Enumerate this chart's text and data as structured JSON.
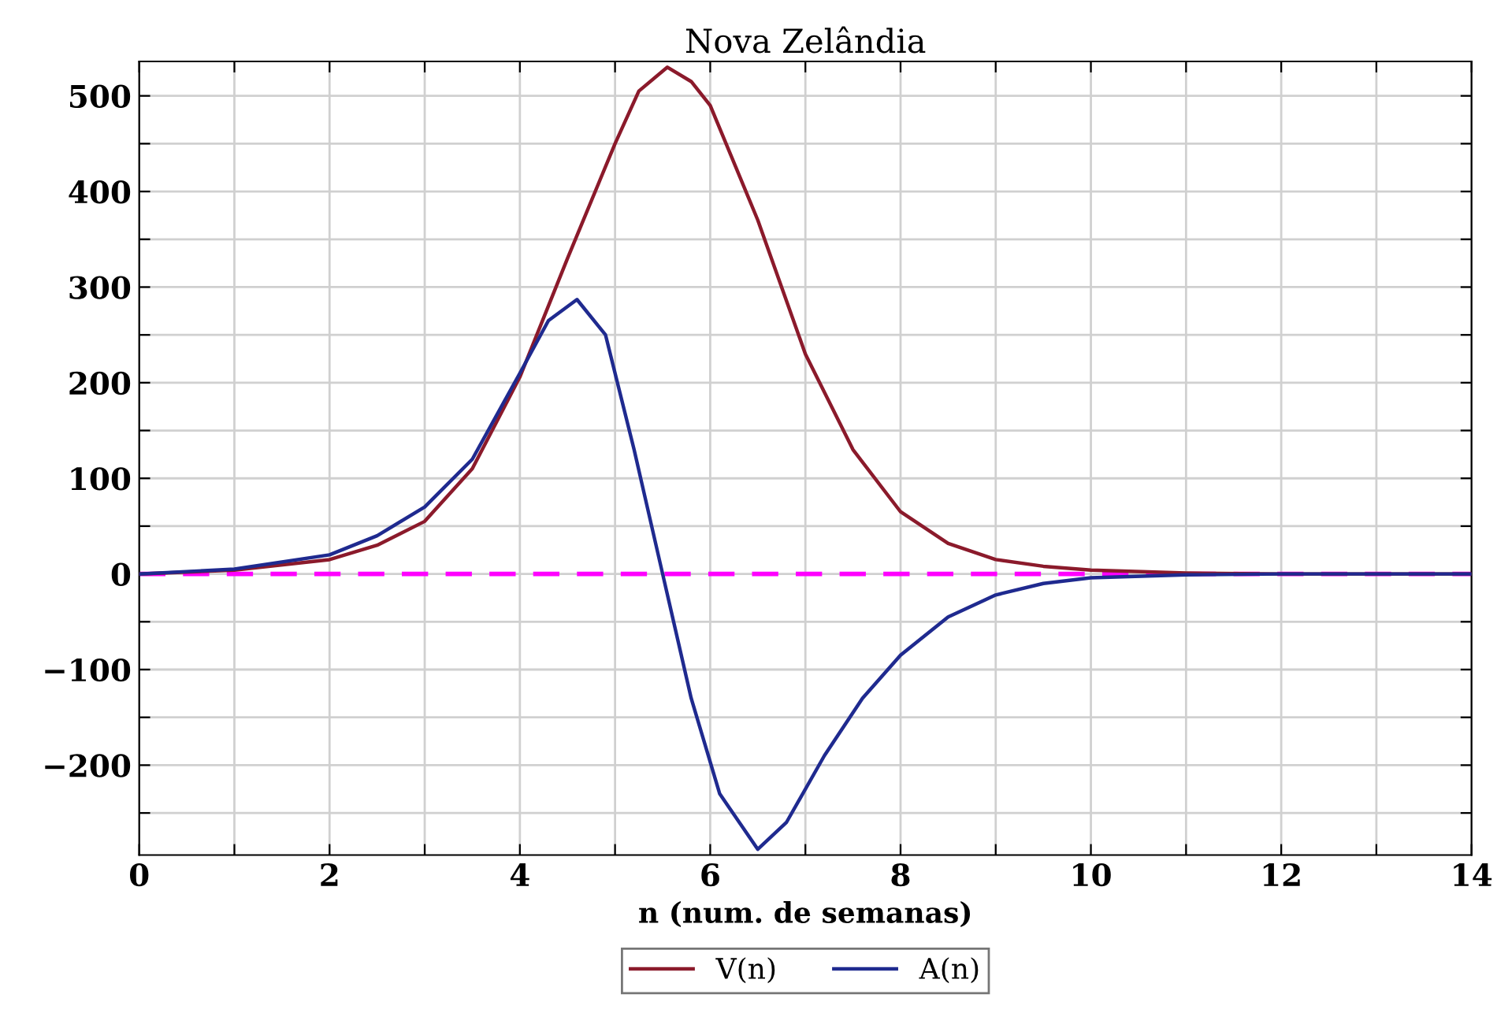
{
  "chart_data": {
    "type": "line",
    "title": "Nova Zelândia",
    "xlabel": "n (num. de semanas)",
    "xlim": [
      0,
      14
    ],
    "ylim": [
      -294,
      536
    ],
    "xticks": [
      0,
      {
        "value": 1,
        "label": null
      },
      2,
      {
        "value": 3,
        "label": null
      },
      4,
      {
        "value": 5,
        "label": null
      },
      6,
      {
        "value": 7,
        "label": null
      },
      8,
      {
        "value": 9,
        "label": null
      },
      10,
      {
        "value": 11,
        "label": null
      },
      12,
      {
        "value": 13,
        "label": null
      },
      14
    ],
    "yticks": [
      {
        "value": -250,
        "label": null
      },
      -200,
      {
        "value": -150,
        "label": null
      },
      -100,
      {
        "value": -50,
        "label": null
      },
      0,
      {
        "value": 50,
        "label": null
      },
      100,
      {
        "value": 150,
        "label": null
      },
      200,
      {
        "value": 250,
        "label": null
      },
      300,
      {
        "value": 350,
        "label": null
      },
      400,
      {
        "value": 450,
        "label": null
      },
      500
    ],
    "grid": true,
    "legend": "bottom",
    "line_style": "solid",
    "marker": "none",
    "ref_lines": [
      {
        "axis": "y",
        "value": 0,
        "color": "#ff00ff",
        "line_style": "dashed"
      }
    ],
    "series": [
      {
        "name": "V(n)",
        "color": "#8b1a2b",
        "x": [
          0,
          1,
          2,
          2.5,
          3,
          3.5,
          4,
          4.5,
          5,
          5.25,
          5.55,
          5.8,
          6,
          6.5,
          7,
          7.5,
          8,
          8.5,
          9,
          9.5,
          10,
          11,
          12,
          13,
          14
        ],
        "values": [
          0,
          4,
          15,
          30,
          55,
          110,
          206,
          330,
          450,
          505,
          530,
          515,
          490,
          370,
          230,
          130,
          65,
          32,
          15,
          8,
          4,
          1,
          0,
          0,
          0
        ]
      },
      {
        "name": "A(n)",
        "color": "#1f2a8f",
        "x": [
          0,
          1,
          2,
          2.5,
          3,
          3.5,
          4,
          4.3,
          4.6,
          4.9,
          5.2,
          5.5,
          5.8,
          6.1,
          6.5,
          6.8,
          7.2,
          7.6,
          8,
          8.5,
          9,
          9.5,
          10,
          11,
          12,
          13,
          14
        ],
        "values": [
          0,
          5,
          20,
          40,
          70,
          120,
          210,
          265,
          287,
          250,
          130,
          0,
          -130,
          -230,
          -288,
          -260,
          -190,
          -130,
          -85,
          -45,
          -22,
          -10,
          -4,
          -1,
          0,
          0,
          0
        ]
      }
    ]
  }
}
